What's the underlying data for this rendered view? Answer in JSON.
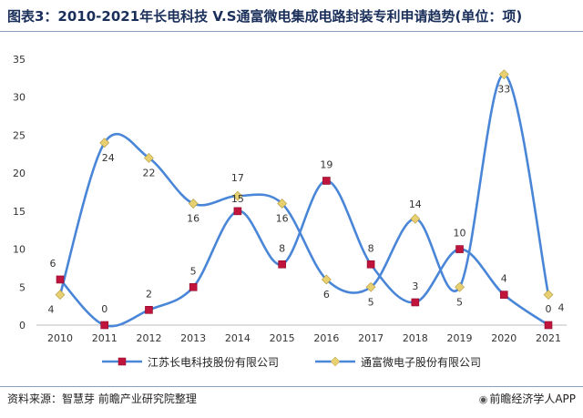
{
  "title": "图表3：2010-2021年长电科技 V.S通富微电集成电路封装专利申请趋势(单位：项)",
  "source": "资料来源：智慧芽 前瞻产业研究院整理",
  "brand": "前瞻经济学人APP",
  "colors": {
    "line": "#4a86d8",
    "marker_a": "#c0143c",
    "marker_b": "#e8d070"
  },
  "chart_data": {
    "type": "line",
    "x": [
      "2010",
      "2011",
      "2012",
      "2013",
      "2014",
      "2015",
      "2016",
      "2017",
      "2018",
      "2019",
      "2020",
      "2021"
    ],
    "ylim": [
      0,
      35
    ],
    "yticks": [
      0,
      5,
      10,
      15,
      20,
      25,
      30,
      35
    ],
    "grid": false,
    "legend_position": "bottom",
    "series": [
      {
        "name": "江苏长电科技股份有限公司",
        "values": [
          6,
          0,
          2,
          5,
          15,
          8,
          19,
          8,
          3,
          10,
          4,
          0
        ]
      },
      {
        "name": "通富微电子股份有限公司",
        "values": [
          4,
          24,
          22,
          16,
          17,
          16,
          6,
          5,
          14,
          5,
          33,
          4
        ]
      }
    ]
  }
}
